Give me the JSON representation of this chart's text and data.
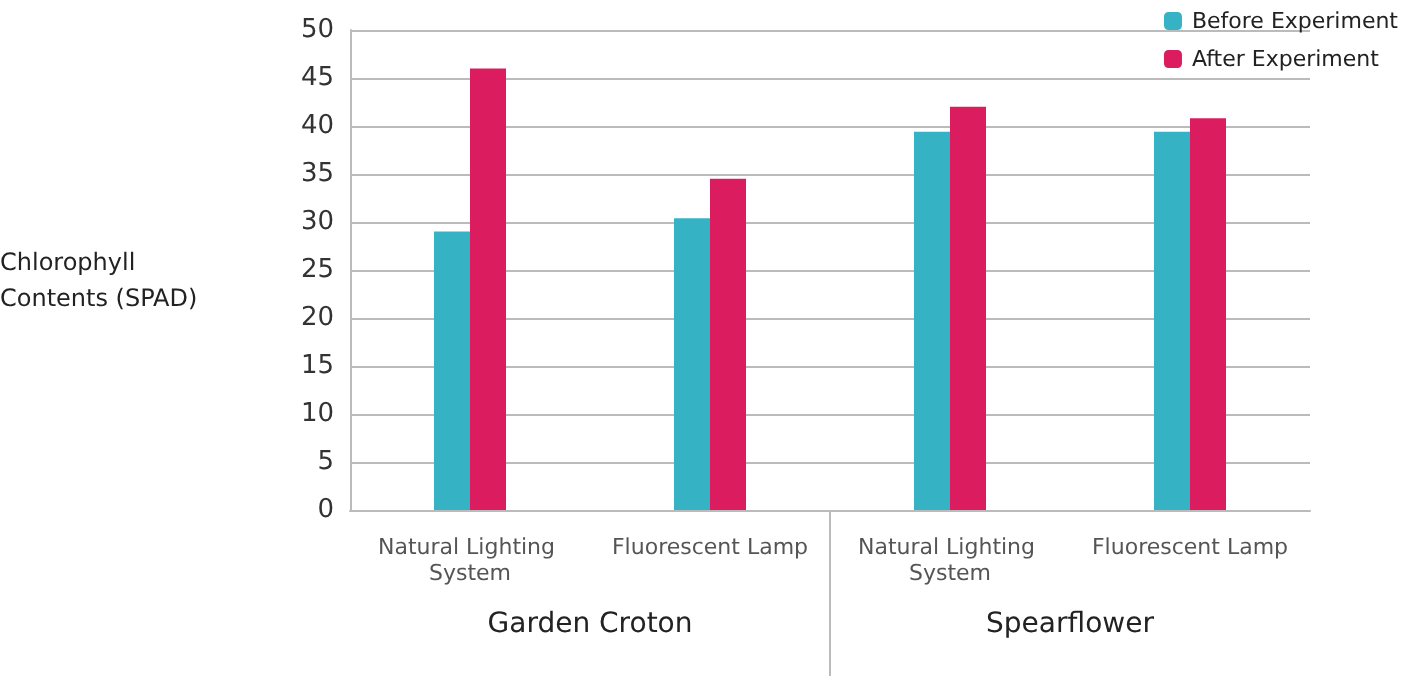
{
  "chart_data": {
    "type": "bar",
    "ylabel": "Chlorophyll Contents (SPAD)",
    "categories": [
      "Natural Lighting System",
      "Fluorescent Lamp",
      "Natural Lighting System",
      "Fluorescent Lamp"
    ],
    "series": [
      {
        "name": "Before Experiment",
        "color": "#35b3c5",
        "values": [
          29,
          30.4,
          39.4,
          39.4
        ]
      },
      {
        "name": "After Experiment",
        "color": "#db1c5e",
        "values": [
          46,
          34.5,
          42,
          40.8
        ]
      }
    ],
    "annotations": [
      "Garden Croton",
      "Spearflower"
    ],
    "ylim": [
      0,
      50
    ],
    "yticks": [
      0,
      5,
      10,
      15,
      20,
      25,
      30,
      35,
      40,
      45,
      50
    ],
    "grid": "y",
    "legend": "top right"
  }
}
